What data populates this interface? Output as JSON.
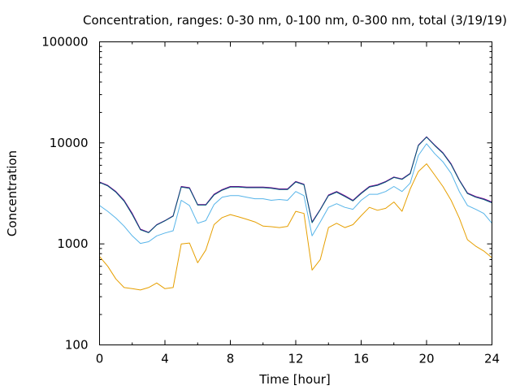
{
  "chart_data": {
    "type": "line",
    "title": "Concentration, ranges: 0-30 nm, 0-100 nm, 0-300 nm, total (3/19/19)",
    "xlabel": "Time [hour]",
    "ylabel": "Concentration",
    "xlim": [
      0,
      24
    ],
    "ylim": [
      100,
      100000
    ],
    "yscale": "log",
    "grid": false,
    "xticks": [
      0,
      4,
      8,
      12,
      16,
      20,
      24
    ],
    "xtick_labels": [
      "0",
      "4",
      "8",
      "12",
      "16",
      "20",
      "24"
    ],
    "yticks": [
      100,
      1000,
      10000,
      100000
    ],
    "ytick_labels": [
      "100",
      "1000",
      "10000",
      "100000"
    ],
    "x": [
      0,
      0.5,
      1,
      1.5,
      2,
      2.5,
      3,
      3.5,
      4,
      4.5,
      5,
      5.5,
      6,
      6.5,
      7,
      7.5,
      8,
      8.5,
      9,
      9.5,
      10,
      10.5,
      11,
      11.5,
      12,
      12.5,
      13,
      13.5,
      14,
      14.5,
      15,
      15.5,
      16,
      16.5,
      17,
      17.5,
      18,
      18.5,
      19,
      19.5,
      20,
      20.5,
      21,
      21.5,
      22,
      22.5,
      23,
      23.5,
      24
    ],
    "series": [
      {
        "color": "#7a0090",
        "values": [
          4100,
          3800,
          3300,
          2700,
          2000,
          1400,
          1300,
          1550,
          1700,
          1900,
          3700,
          3600,
          2450,
          2450,
          3100,
          3450,
          3700,
          3700,
          3650,
          3650,
          3650,
          3600,
          3500,
          3500,
          4150,
          3900,
          1650,
          2200,
          3050,
          3300,
          3000,
          2700,
          3200,
          3700,
          3850,
          4150,
          4600,
          4400,
          5000,
          9500,
          11500,
          9500,
          8000,
          6200,
          4300,
          3200,
          2950,
          2800,
          2600
        ]
      },
      {
        "color": "#005a78",
        "values": [
          4050,
          3750,
          3250,
          2650,
          1950,
          1380,
          1290,
          1540,
          1690,
          1880,
          3650,
          3550,
          2420,
          2420,
          3050,
          3400,
          3650,
          3650,
          3600,
          3600,
          3600,
          3550,
          3450,
          3450,
          4100,
          3850,
          1620,
          2180,
          3000,
          3250,
          2950,
          2660,
          3150,
          3650,
          3800,
          4100,
          4550,
          4350,
          4950,
          9400,
          11400,
          9400,
          7900,
          6100,
          4250,
          3150,
          2900,
          2750,
          2550
        ]
      },
      {
        "color": "#56b4e9",
        "values": [
          2400,
          2100,
          1800,
          1500,
          1200,
          1010,
          1050,
          1200,
          1280,
          1350,
          2700,
          2400,
          1600,
          1700,
          2450,
          2900,
          3000,
          3000,
          2900,
          2800,
          2800,
          2700,
          2750,
          2700,
          3300,
          3000,
          1200,
          1650,
          2300,
          2500,
          2300,
          2200,
          2700,
          3100,
          3100,
          3300,
          3700,
          3300,
          4000,
          7500,
          9800,
          7800,
          6500,
          5000,
          3300,
          2400,
          2200,
          2000,
          1600
        ]
      },
      {
        "color": "#e69f00",
        "values": [
          750,
          600,
          450,
          370,
          360,
          350,
          370,
          410,
          360,
          370,
          1000,
          1020,
          650,
          870,
          1550,
          1820,
          1950,
          1850,
          1750,
          1650,
          1500,
          1480,
          1450,
          1490,
          2100,
          2000,
          550,
          700,
          1450,
          1600,
          1450,
          1550,
          1900,
          2300,
          2150,
          2250,
          2600,
          2100,
          3500,
          5200,
          6200,
          4800,
          3700,
          2700,
          1800,
          1100,
          950,
          850,
          730
        ]
      }
    ]
  }
}
